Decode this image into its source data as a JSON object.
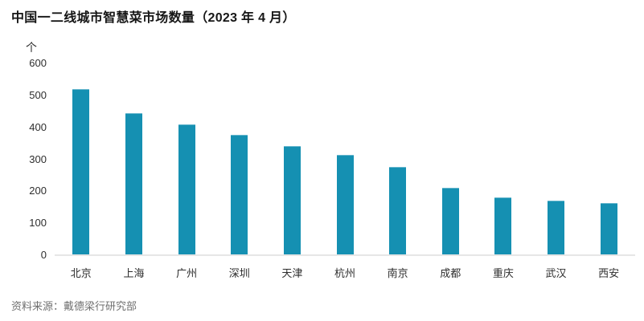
{
  "title": "中国一二线城市智慧菜市场数量（2023 年 4 月）",
  "source_note": "资料来源：戴德梁行研究部",
  "colors": {
    "bar": "#1590b2",
    "baseline": "#e6e6e6",
    "title_text": "#161616",
    "axis_text": "#2e2e2e",
    "source_text": "#6f6f6f",
    "background": "#ffffff"
  },
  "chart_data": {
    "type": "bar",
    "title": "中国一二线城市智慧菜市场数量（2023 年 4 月）",
    "categories": [
      "北京",
      "上海",
      "广州",
      "深圳",
      "天津",
      "杭州",
      "南京",
      "成都",
      "重庆",
      "武汉",
      "西安"
    ],
    "values": [
      520,
      445,
      410,
      377,
      342,
      313,
      275,
      211,
      180,
      170,
      162
    ],
    "xlabel": "",
    "ylabel": "个",
    "ylim": [
      0,
      600
    ],
    "yticks": [
      0,
      100,
      200,
      300,
      400,
      500,
      600
    ],
    "grid": false,
    "legend": false,
    "bar_color": "#1590b2",
    "source": "资料来源：戴德梁行研究部"
  }
}
